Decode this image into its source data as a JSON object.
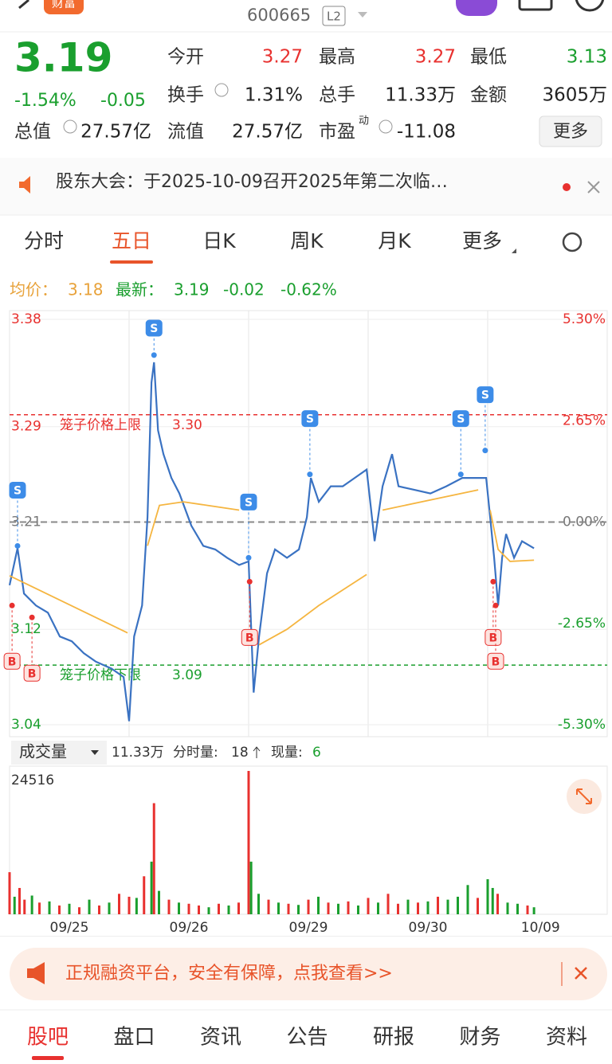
{
  "top_bar": {
    "logo": "财富",
    "code": "600665",
    "level": "L2"
  },
  "quote": {
    "price": "3.19",
    "change_pct": "-1.54%",
    "change": "-0.05",
    "fields": [
      [
        "今开",
        "3.27"
      ],
      [
        "最高",
        "3.27"
      ],
      [
        "最低",
        "3.13"
      ],
      [
        "换手",
        "1.31%"
      ],
      [
        "总手",
        "11.33万"
      ],
      [
        "金额",
        "3605万"
      ],
      [
        "总值",
        "27.57亿"
      ],
      [
        "流值",
        "27.57亿"
      ],
      [
        "市盈",
        "-11.08"
      ]
    ],
    "pe_sup": "动",
    "more": "更多"
  },
  "notice": {
    "text": "股东大会：于2025-10-09召开2025年第二次临…"
  },
  "tabs": [
    "分时",
    "五日",
    "日K",
    "周K",
    "月K",
    "更多"
  ],
  "info": {
    "avg_label": "均价：",
    "avg": "3.18",
    "last_label": "最新：",
    "last": "3.19",
    "change": "-0.02",
    "change_pct": "-0.62%"
  },
  "chart_data": [
    {
      "type": "line",
      "xlim": [
        0,
        1200
      ],
      "ylim": [
        3.04,
        3.38
      ],
      "yticks": [
        3.38,
        3.29,
        3.21,
        3.12,
        3.04
      ],
      "y2lim": [
        -5.3,
        5.3
      ],
      "y2ticks": [
        {
          "value": 5.3,
          "label": "5.30%"
        },
        {
          "value": 2.65,
          "label": "2.65%"
        },
        {
          "value": 0,
          "label": "0.00%"
        },
        {
          "value": -2.65,
          "label": "-2.65%"
        },
        {
          "value": -5.3,
          "label": "-5.30%"
        }
      ],
      "prev_close": 3.21,
      "day_breaks": [
        240,
        480,
        720,
        960
      ],
      "reference_lines": [
        {
          "label": "笼子价格上限",
          "value": {
            "value": 3.3,
            "label": "3.30"
          },
          "color": "#e8312f"
        },
        {
          "label": "笼子价格下限",
          "value": 3.09,
          "color": "#1a9f2e"
        }
      ],
      "series": [
        {
          "color": "#3a72c2",
          "x": [
            0,
            16,
            29,
            53,
            77,
            101,
            125,
            149,
            173,
            205,
            229,
            240,
            250,
            266,
            277,
            285,
            290,
            298,
            309,
            325,
            341,
            365,
            389,
            413,
            437,
            461,
            480,
            490,
            501,
            517,
            533,
            557,
            581,
            597,
            605,
            621,
            645,
            669,
            693,
            717,
            733,
            749,
            768,
            781,
            813,
            845,
            877,
            909,
            941,
            957,
            965,
            973,
            981,
            989,
            997,
            1013,
            1029,
            1053
          ],
          "values": [
            3.157,
            3.188,
            3.15,
            3.14,
            3.134,
            3.114,
            3.11,
            3.1,
            3.093,
            3.087,
            3.08,
            3.043,
            3.114,
            3.14,
            3.214,
            3.327,
            3.344,
            3.287,
            3.267,
            3.247,
            3.234,
            3.207,
            3.19,
            3.187,
            3.18,
            3.174,
            3.177,
            3.067,
            3.114,
            3.167,
            3.187,
            3.18,
            3.187,
            3.214,
            3.247,
            3.227,
            3.24,
            3.24,
            3.247,
            3.254,
            3.194,
            3.24,
            3.267,
            3.24,
            3.237,
            3.234,
            3.24,
            3.247,
            3.247,
            3.247,
            3.214,
            3.18,
            3.14,
            3.18,
            3.2,
            3.18,
            3.194,
            3.188
          ]
        },
        {
          "color": "#f5b540",
          "x": [
            0,
            237,
            240,
            277,
            301,
            349,
            461,
            480,
            501,
            557,
            621,
            717,
            733,
            749,
            941,
            957,
            965,
            981,
            1005,
            1053
          ],
          "values": [
            3.165,
            3.117,
            null,
            3.19,
            3.224,
            3.227,
            3.22,
            null,
            3.107,
            3.12,
            3.14,
            3.166,
            null,
            3.22,
            3.237,
            null,
            3.22,
            3.187,
            3.177,
            3.178
          ]
        }
      ],
      "markers": [
        {
          "label": "S",
          "x": 16,
          "price": 3.19
        },
        {
          "label": "B",
          "x": 5,
          "price": 3.14
        },
        {
          "label": "B",
          "x": 45,
          "price": 3.13
        },
        {
          "label": "S",
          "x": 290,
          "price": 3.35
        },
        {
          "label": "S",
          "x": 480,
          "price": 3.18
        },
        {
          "label": "B",
          "x": 482,
          "price": 3.16
        },
        {
          "label": "S",
          "x": 603,
          "price": 3.25
        },
        {
          "label": "S",
          "x": 906,
          "price": 3.25
        },
        {
          "label": "S",
          "x": 955,
          "price": 3.27
        },
        {
          "label": "B",
          "x": 971,
          "price": 3.16
        },
        {
          "label": "B",
          "x": 976,
          "price": 3.14
        }
      ]
    },
    {
      "type": "bar",
      "xlim": [
        0,
        1200
      ],
      "ylim": [
        0,
        24516
      ],
      "yticks": [
        24516
      ],
      "xticks": [
        {
          "value": 120,
          "label": "09/25"
        },
        {
          "value": 360,
          "label": "09/26"
        },
        {
          "value": 600,
          "label": "09/29"
        },
        {
          "value": 840,
          "label": "09/30"
        },
        {
          "value": 1066,
          "label": "10/09"
        }
      ],
      "x": [
        0,
        10,
        20,
        30,
        45,
        60,
        80,
        100,
        120,
        140,
        160,
        180,
        200,
        220,
        240,
        255,
        270,
        285,
        290,
        300,
        320,
        340,
        360,
        380,
        400,
        420,
        440,
        460,
        480,
        485,
        500,
        520,
        540,
        560,
        580,
        600,
        620,
        640,
        660,
        680,
        700,
        720,
        740,
        760,
        780,
        800,
        820,
        840,
        860,
        880,
        900,
        920,
        940,
        960,
        970,
        980,
        1000,
        1020,
        1040,
        1053
      ],
      "values": [
        7200,
        3000,
        4500,
        2500,
        3200,
        2000,
        2200,
        1500,
        1800,
        1200,
        2500,
        1500,
        2000,
        3500,
        3000,
        2800,
        6500,
        9000,
        19000,
        4000,
        2500,
        2000,
        1800,
        1500,
        1200,
        1800,
        1500,
        2000,
        24516,
        9000,
        3500,
        2500,
        2000,
        1800,
        1600,
        2500,
        3000,
        2000,
        1800,
        2200,
        1500,
        2800,
        2000,
        3500,
        1800,
        2500,
        2000,
        2200,
        3000,
        2500,
        3000,
        5000,
        2800,
        6000,
        4500,
        3500,
        2000,
        1800,
        1500,
        1200
      ],
      "colors": [
        "#e8312f",
        "#1a9f2e",
        "#e8312f",
        "#e8312f",
        "#1a9f2e",
        "#e8312f",
        "#1a9f2e",
        "#e8312f",
        "#1a9f2e",
        "#e8312f",
        "#1a9f2e",
        "#e8312f",
        "#1a9f2e",
        "#e8312f",
        "#e8312f",
        "#1a9f2e",
        "#e8312f",
        "#1a9f2e",
        "#e8312f",
        "#1a9f2e",
        "#e8312f",
        "#1a9f2e",
        "#e8312f",
        "#e8312f",
        "#1a9f2e",
        "#e8312f",
        "#1a9f2e",
        "#e8312f",
        "#e8312f",
        "#1a9f2e",
        "#1a9f2e",
        "#e8312f",
        "#1a9f2e",
        "#e8312f",
        "#1a9f2e",
        "#e8312f",
        "#1a9f2e",
        "#e8312f",
        "#1a9f2e",
        "#e8312f",
        "#1a9f2e",
        "#e8312f",
        "#1a9f2e",
        "#e8312f",
        "#e8312f",
        "#1a9f2e",
        "#e8312f",
        "#1a9f2e",
        "#e8312f",
        "#1a9f2e",
        "#1a9f2e",
        "#1a9f2e",
        "#e8312f",
        "#1a9f2e",
        "#1a9f2e",
        "#e8312f",
        "#1a9f2e",
        "#1a9f2e",
        "#e8312f",
        "#1a9f2e"
      ]
    }
  ],
  "volume_header": {
    "selector": "成交量",
    "total": "11.33万",
    "minute_label": "分时量:",
    "minute": "18",
    "current_label": "现量:",
    "current": "6"
  },
  "banner": {
    "text": "正规融资平台，安全有保障，点我查看>>"
  },
  "bottom_nav": [
    "股吧",
    "盘口",
    "资讯",
    "公告",
    "研报",
    "财务",
    "资料"
  ]
}
